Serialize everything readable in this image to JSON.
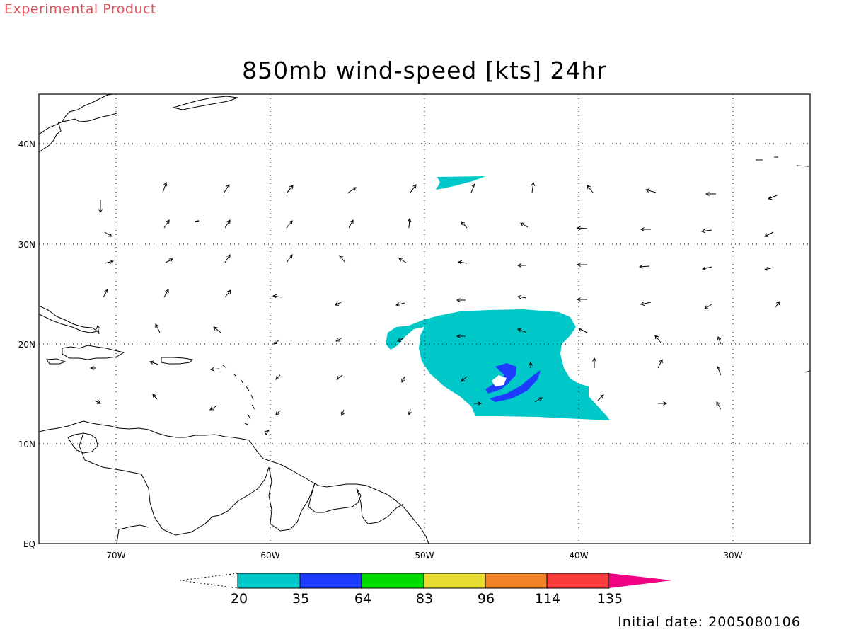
{
  "header": {
    "tag": "Experimental Product",
    "title": "850mb wind-speed [kts] 24hr",
    "initial_date": "Initial date: 2005080106"
  },
  "map": {
    "lon_range": [
      -75,
      -25
    ],
    "lat_range": [
      0,
      45
    ],
    "lat_ticks": [
      {
        "value": 40,
        "label": "40N"
      },
      {
        "value": 30,
        "label": "30N"
      },
      {
        "value": 20,
        "label": "20N"
      },
      {
        "value": 10,
        "label": "10N"
      },
      {
        "value": 0,
        "label": "EQ"
      }
    ],
    "lon_ticks": [
      {
        "value": -70,
        "label": "70W"
      },
      {
        "value": -60,
        "label": "60W"
      },
      {
        "value": -50,
        "label": "50W"
      },
      {
        "value": -40,
        "label": "40W"
      },
      {
        "value": -30,
        "label": "30W"
      }
    ],
    "grid": "dotted"
  },
  "colorbar": {
    "levels": [
      "20",
      "35",
      "64",
      "83",
      "96",
      "114",
      "135"
    ],
    "colors": [
      "#00c8c8",
      "#1e3cff",
      "#00dc00",
      "#e6dc32",
      "#f08228",
      "#fa3c3c",
      "#f00082"
    ]
  }
}
